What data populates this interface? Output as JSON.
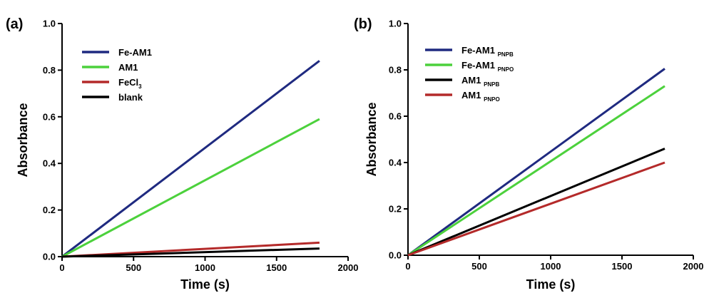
{
  "chart_data": [
    {
      "panel_label": "(a)",
      "type": "line",
      "xlabel": "Time (s)",
      "ylabel": "Absorbance",
      "xlim": [
        0,
        2000
      ],
      "ylim": [
        0,
        1.0
      ],
      "x_ticks": [
        "0",
        "500",
        "1000",
        "1500",
        "2000"
      ],
      "y_ticks": [
        "0.0",
        "0.2",
        "0.4",
        "0.6",
        "0.8",
        "1.0"
      ],
      "legend_position": "top-left",
      "series": [
        {
          "name": "Fe-AM1",
          "name_sub": "",
          "color": "#1f2a80",
          "x": [
            0,
            1800
          ],
          "y": [
            0,
            0.84
          ]
        },
        {
          "name": "AM1",
          "name_sub": "",
          "color": "#4cd13c",
          "x": [
            0,
            1800
          ],
          "y": [
            0,
            0.59
          ]
        },
        {
          "name": "FeCl",
          "name_sub": "3",
          "color": "#b42a2a",
          "x": [
            0,
            1800
          ],
          "y": [
            0,
            0.06
          ]
        },
        {
          "name": "blank",
          "name_sub": "",
          "color": "#000000",
          "x": [
            0,
            1800
          ],
          "y": [
            0,
            0.035
          ]
        }
      ]
    },
    {
      "panel_label": "(b)",
      "type": "line",
      "xlabel": "Time (s)",
      "ylabel": "Absorbance",
      "xlim": [
        0,
        2000
      ],
      "ylim": [
        0,
        1.0
      ],
      "x_ticks": [
        "0",
        "500",
        "1000",
        "1500",
        "2000"
      ],
      "y_ticks": [
        "0.0",
        "0.2",
        "0.4",
        "0.6",
        "0.8",
        "1.0"
      ],
      "legend_position": "top-left",
      "series": [
        {
          "name": "Fe-AM1 ",
          "name_sub": "PNPB",
          "color": "#1f2a80",
          "x": [
            0,
            1800
          ],
          "y": [
            0,
            0.805
          ]
        },
        {
          "name": "Fe-AM1 ",
          "name_sub": "PNPO",
          "color": "#4cd13c",
          "x": [
            0,
            1800
          ],
          "y": [
            0,
            0.73
          ]
        },
        {
          "name": "AM1 ",
          "name_sub": "PNPB",
          "color": "#000000",
          "x": [
            0,
            1800
          ],
          "y": [
            0,
            0.46
          ]
        },
        {
          "name": "AM1 ",
          "name_sub": "PNPO",
          "color": "#b42a2a",
          "x": [
            0,
            1800
          ],
          "y": [
            0,
            0.4
          ]
        }
      ]
    }
  ]
}
